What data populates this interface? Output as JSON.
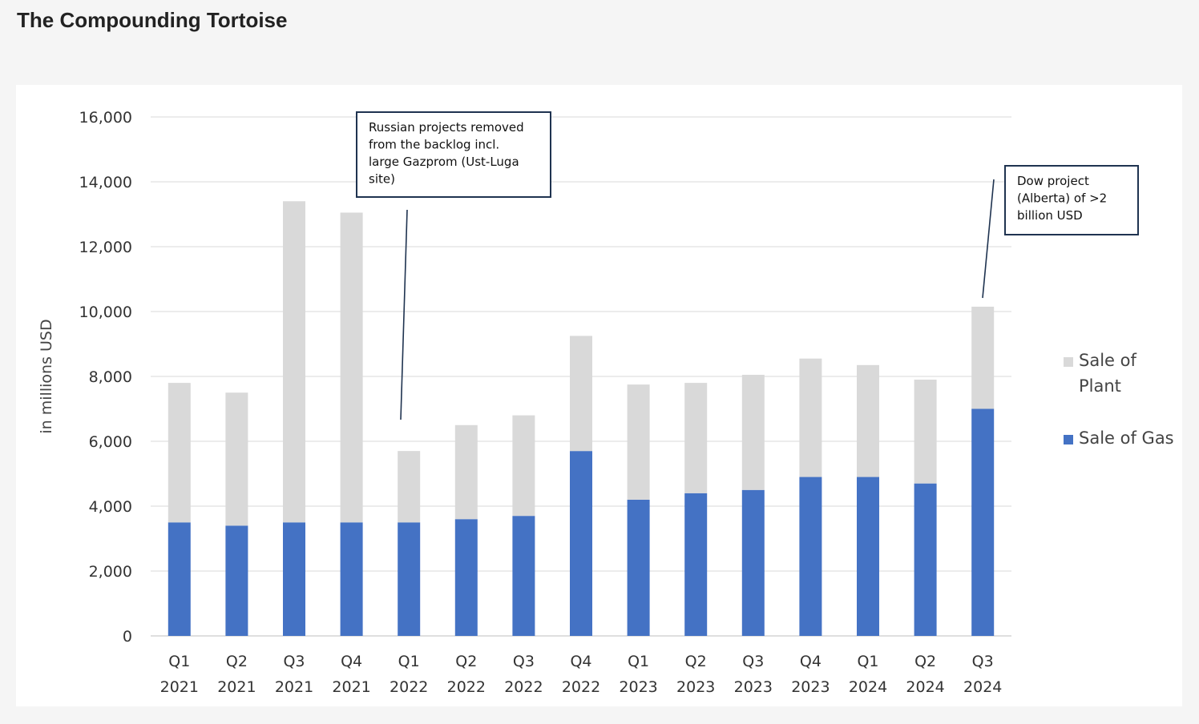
{
  "page": {
    "title": "The Compounding Tortoise"
  },
  "chart_data": {
    "type": "bar",
    "stacked": true,
    "categories": [
      [
        "Q1",
        "2021"
      ],
      [
        "Q2",
        "2021"
      ],
      [
        "Q3",
        "2021"
      ],
      [
        "Q4",
        "2021"
      ],
      [
        "Q1",
        "2022"
      ],
      [
        "Q2",
        "2022"
      ],
      [
        "Q3",
        "2022"
      ],
      [
        "Q4",
        "2022"
      ],
      [
        "Q1",
        "2023"
      ],
      [
        "Q2",
        "2023"
      ],
      [
        "Q3",
        "2023"
      ],
      [
        "Q4",
        "2023"
      ],
      [
        "Q1",
        "2024"
      ],
      [
        "Q2",
        "2024"
      ],
      [
        "Q3",
        "2024"
      ]
    ],
    "series": [
      {
        "name": "Sale of Gas",
        "color": "#4472c4",
        "values": [
          3500,
          3400,
          3500,
          3500,
          3500,
          3600,
          3700,
          5700,
          4200,
          4400,
          4500,
          4900,
          4900,
          4700,
          7000
        ]
      },
      {
        "name": "Sale of Plant",
        "color": "#d9d9d9",
        "values": [
          4300,
          4100,
          9900,
          9550,
          2200,
          2900,
          3100,
          3550,
          3550,
          3400,
          3550,
          3650,
          3450,
          3200,
          3150
        ]
      }
    ],
    "ylabel": "in millions USD",
    "ylim": [
      0,
      16000
    ],
    "yticks": [
      0,
      2000,
      4000,
      6000,
      8000,
      10000,
      12000,
      14000,
      16000
    ],
    "ytick_labels": [
      "0",
      "2,000",
      "4,000",
      "6,000",
      "8,000",
      "10,000",
      "12,000",
      "14,000",
      "16,000"
    ],
    "grid": true,
    "legend": {
      "position": "right",
      "items": [
        {
          "series": "Sale of Plant",
          "lines": [
            "Sale of",
            "Plant"
          ]
        },
        {
          "series": "Sale of Gas",
          "lines": [
            "Sale of Gas"
          ]
        }
      ]
    },
    "annotations": [
      {
        "lines": [
          "Russian projects removed",
          "from the backlog incl.",
          "large Gazprom (Ust-Luga",
          "site)"
        ],
        "category_index": 4,
        "y": 6700
      },
      {
        "lines": [
          "Dow project",
          "(Alberta) of >2",
          "billion USD"
        ],
        "category_index": 14,
        "y": 10300
      }
    ]
  }
}
